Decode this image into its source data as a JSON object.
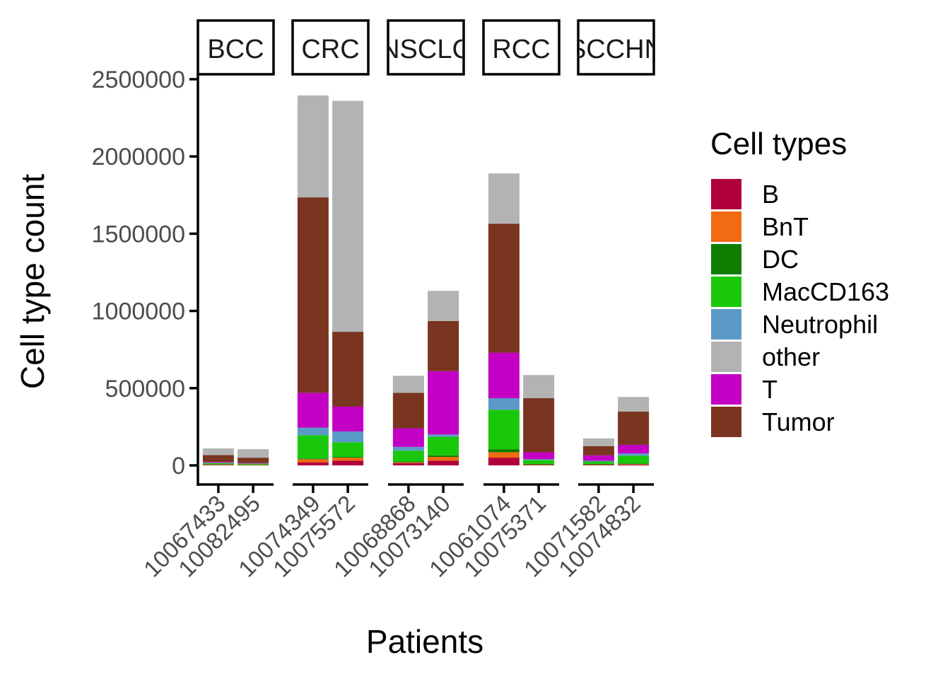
{
  "chart_data": {
    "type": "bar",
    "stacked": true,
    "faceted": true,
    "xlabel": "Patients",
    "ylabel": "Cell type count",
    "ylim": [
      0,
      2500000
    ],
    "yticks": [
      0,
      500000,
      1000000,
      1500000,
      2000000,
      2500000
    ],
    "ytick_labels": [
      "0",
      "500000",
      "1000000",
      "1500000",
      "2000000",
      "2500000"
    ],
    "grid": false,
    "legend": {
      "title": "Cell types",
      "position": "right"
    },
    "series": [
      {
        "name": "B",
        "color": "#B0003A"
      },
      {
        "name": "BnT",
        "color": "#F06B14"
      },
      {
        "name": "DC",
        "color": "#0F7D00"
      },
      {
        "name": "MacCD163",
        "color": "#19C80A"
      },
      {
        "name": "Neutrophil",
        "color": "#5B9AC8"
      },
      {
        "name": "other",
        "color": "#B3B3B3"
      },
      {
        "name": "T",
        "color": "#C300C3"
      },
      {
        "name": "Tumor",
        "color": "#793520"
      }
    ],
    "facets": [
      {
        "label": "BCC",
        "patients": [
          {
            "id": "10067433",
            "values": {
              "B": 3000,
              "BnT": 2000,
              "DC": 3000,
              "MacCD163": 7000,
              "Neutrophil": 2000,
              "T": 5000,
              "Tumor": 45000,
              "other": 43000
            }
          },
          {
            "id": "10082495",
            "values": {
              "B": 2000,
              "BnT": 1000,
              "DC": 2000,
              "MacCD163": 6000,
              "Neutrophil": 1000,
              "T": 3000,
              "Tumor": 35000,
              "other": 55000
            }
          }
        ]
      },
      {
        "label": "CRC",
        "patients": [
          {
            "id": "10074349",
            "values": {
              "B": 20000,
              "BnT": 20000,
              "DC": 5000,
              "MacCD163": 150000,
              "Neutrophil": 50000,
              "T": 225000,
              "Tumor": 1265000,
              "other": 660000
            }
          },
          {
            "id": "10075572",
            "values": {
              "B": 30000,
              "BnT": 20000,
              "DC": 5000,
              "MacCD163": 95000,
              "Neutrophil": 70000,
              "T": 160000,
              "Tumor": 485000,
              "other": 1495000
            }
          }
        ]
      },
      {
        "label": "NSCLC",
        "patients": [
          {
            "id": "10068868",
            "values": {
              "B": 15000,
              "BnT": 5000,
              "DC": 5000,
              "MacCD163": 70000,
              "Neutrophil": 25000,
              "T": 120000,
              "Tumor": 230000,
              "other": 110000
            }
          },
          {
            "id": "10073140",
            "values": {
              "B": 30000,
              "BnT": 25000,
              "DC": 10000,
              "MacCD163": 120000,
              "Neutrophil": 15000,
              "T": 410000,
              "Tumor": 325000,
              "other": 195000
            }
          }
        ]
      },
      {
        "label": "RCC",
        "patients": [
          {
            "id": "10061074",
            "values": {
              "B": 50000,
              "BnT": 35000,
              "DC": 20000,
              "MacCD163": 255000,
              "Neutrophil": 75000,
              "T": 295000,
              "Tumor": 835000,
              "other": 325000
            }
          },
          {
            "id": "10075371",
            "values": {
              "B": 3000,
              "BnT": 2000,
              "DC": 5000,
              "MacCD163": 25000,
              "Neutrophil": 5000,
              "T": 45000,
              "Tumor": 350000,
              "other": 150000
            }
          }
        ]
      },
      {
        "label": "SCCHN",
        "patients": [
          {
            "id": "10071582",
            "values": {
              "B": 3000,
              "BnT": 2000,
              "DC": 5000,
              "MacCD163": 15000,
              "Neutrophil": 5000,
              "T": 35000,
              "Tumor": 60000,
              "other": 50000
            }
          },
          {
            "id": "10074832",
            "values": {
              "B": 5000,
              "BnT": 3000,
              "DC": 5000,
              "MacCD163": 50000,
              "Neutrophil": 15000,
              "T": 55000,
              "Tumor": 215000,
              "other": 95000
            }
          }
        ]
      }
    ]
  }
}
